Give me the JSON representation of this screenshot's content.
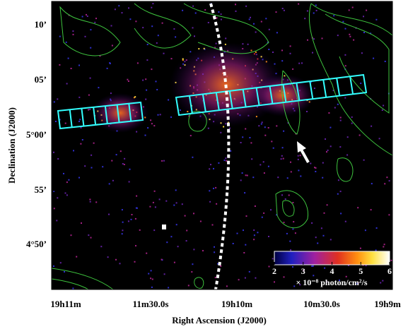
{
  "figure": {
    "x_axis_label": "Right Ascension (J2000)",
    "y_axis_label": "Declination (J2000)",
    "x_ticks": [
      "19h11m",
      "11m30.0s",
      "19h10m",
      "10m30.0s",
      "19h9m"
    ],
    "y_ticks": [
      "10’",
      "05’",
      "5°00’",
      "55’",
      "4°50’"
    ],
    "colorbar": {
      "range": [
        2,
        6
      ],
      "ticks": [
        2,
        3,
        4,
        5,
        6
      ],
      "label": "× 10⁻⁸ photon/cm²/s"
    }
  }
}
